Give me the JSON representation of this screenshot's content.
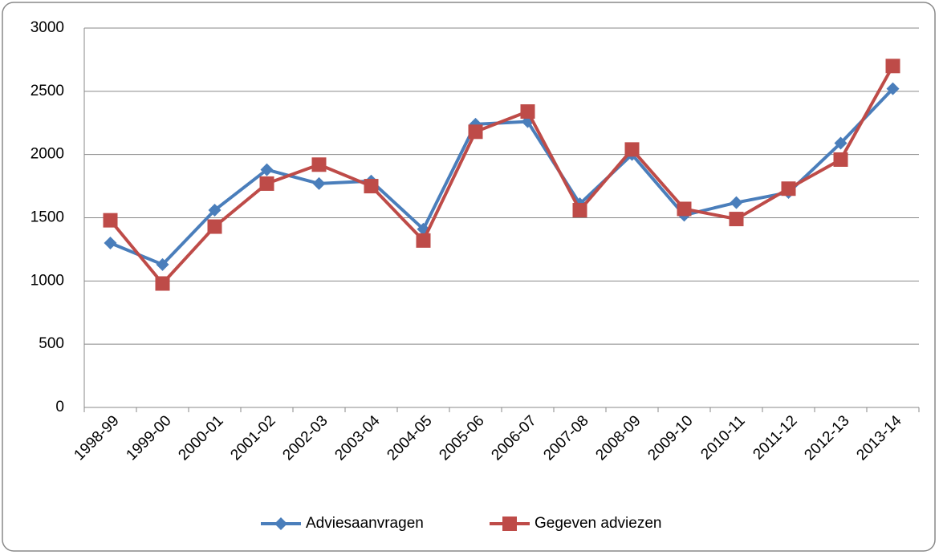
{
  "chart_data": {
    "type": "line",
    "categories": [
      "1998-99",
      "1999-00",
      "2000-01",
      "2001-02",
      "2002-03",
      "2003-04",
      "2004-05",
      "2005-06",
      "2006-07",
      "2007-08",
      "2008-09",
      "2009-10",
      "2010-11",
      "2011-12",
      "2012-13",
      "2013-14"
    ],
    "series": [
      {
        "name": "Adviesaanvragen",
        "color": "#4a7ebb",
        "marker": "diamond",
        "values": [
          1300,
          1130,
          1560,
          1880,
          1770,
          1790,
          1410,
          2240,
          2260,
          1610,
          2000,
          1520,
          1620,
          1700,
          2090,
          2520
        ]
      },
      {
        "name": "Gegeven adviezen",
        "color": "#be4b48",
        "marker": "square",
        "values": [
          1480,
          980,
          1430,
          1770,
          1920,
          1750,
          1320,
          2180,
          2340,
          1560,
          2040,
          1570,
          1490,
          1730,
          1960,
          2700
        ]
      }
    ],
    "ylim": [
      0,
      3000
    ],
    "yticks": [
      0,
      500,
      1000,
      1500,
      2000,
      2500,
      3000
    ],
    "grid": true,
    "legend": "bottom"
  }
}
